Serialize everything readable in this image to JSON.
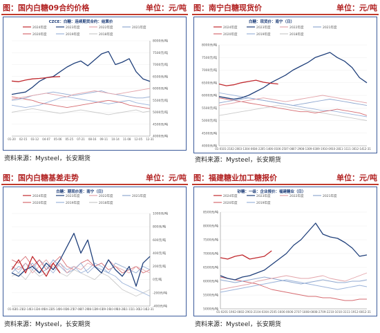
{
  "panels": [
    {
      "header": {
        "title": "图：国内白糖09合约价格",
        "unit": "单位：元/吨"
      },
      "source": "资料来源：Mysteel，长安期货",
      "chart": {
        "type": "line",
        "title": "CZCE：白糖：连续期货合约：结算价",
        "unit_label": "元/吨",
        "ylim": [
          4000,
          8000
        ],
        "y_ticks": [
          4000,
          4500,
          5000,
          5500,
          6000,
          6500,
          7000,
          7500,
          8000
        ],
        "y_tick_labels": [
          "4000元/吨",
          "4500元/吨",
          "5000元/吨",
          "5500元/吨",
          "6000元/吨",
          "6500元/吨",
          "7000元/吨",
          "7500元/吨",
          "8000元/吨"
        ],
        "x_tick_labels": [
          "01-20",
          "02-15",
          "03-12",
          "04-07",
          "05-06",
          "05-25",
          "07-21",
          "08-16",
          "09-11",
          "10-14",
          "11-08",
          "12-05",
          "12-31"
        ],
        "legend": [
          "2024年度",
          "2023年度",
          "2022年度",
          "2021年度",
          "2020年度",
          "2019年度",
          "2018年度"
        ],
        "colors": [
          "#c0282d",
          "#1f3f7a",
          "#e3a3a9",
          "#8fa8d0",
          "#d66a6f",
          "#9bb3da",
          "#c9c9c9"
        ],
        "series": [
          {
            "name": "2024年度",
            "values": [
              6310,
              6280,
              6350,
              6400,
              6420,
              6450,
              6480,
              6500
            ]
          },
          {
            "name": "2023年度",
            "values": [
              5750,
              5800,
              5850,
              6050,
              6300,
              6450,
              6500,
              6700,
              6900,
              7050,
              7150,
              6950,
              7200,
              7450,
              7550,
              7000,
              7100,
              7250,
              6700,
              6400,
              6300
            ]
          },
          {
            "name": "2022年度",
            "values": [
              5550,
              5600,
              5650,
              5700,
              5750,
              5800,
              5750,
              5700,
              5650,
              5750,
              5800,
              5850,
              5900,
              5850,
              5800,
              5750,
              5800,
              5850,
              5900,
              5950,
              6000
            ]
          },
          {
            "name": "2021年度",
            "values": [
              5500,
              5550,
              5600,
              5700,
              5750,
              5800,
              5850,
              5800,
              5750,
              5700,
              5750,
              5800,
              5850,
              5900,
              5800,
              5750,
              5700,
              5650,
              5600,
              5600,
              5650
            ]
          },
          {
            "name": "2020年度",
            "values": [
              5650,
              5600,
              5550,
              5500,
              5400,
              5350,
              5300,
              5250,
              5200,
              5250,
              5300,
              5350,
              5400,
              5450,
              5500,
              5450,
              5400,
              5300,
              5250,
              5200,
              5150
            ]
          },
          {
            "name": "2019年度",
            "values": [
              5300,
              5250,
              5200,
              5250,
              5300,
              5400,
              5500,
              5600,
              5650,
              5600,
              5550,
              5500,
              5450,
              5400,
              5350,
              5400,
              5450,
              5500,
              5400,
              5350,
              5300
            ]
          },
          {
            "name": "2018年度",
            "values": [
              5000,
              5050,
              5100,
              5150,
              5100,
              5050,
              5000,
              4950,
              5000,
              5050,
              5100,
              5050,
              5000,
              4950,
              4900,
              4950,
              5000,
              5050,
              5100,
              5000,
              5050
            ]
          }
        ]
      }
    },
    {
      "header": {
        "title": "图：南宁白糖现货价",
        "unit": "单位：元/吨"
      },
      "source": "资料来源：Mysteel，长安期货",
      "chart": {
        "type": "line",
        "title": "白糖：现货价：南宁（日）",
        "unit_label": "元/吨",
        "ylim": [
          4000,
          8000
        ],
        "y_ticks": [
          4000,
          4500,
          5000,
          5500,
          6000,
          6500,
          7000,
          7500,
          8000
        ],
        "y_tick_labels": [
          "4000元/吨",
          "4500元/吨",
          "5000元/吨",
          "5500元/吨",
          "6000元/吨",
          "6500元/吨",
          "7000元/吨",
          "7500元/吨",
          "8000元/吨"
        ],
        "x_tick_labels": [
          "01-01",
          "01-21",
          "02-20",
          "03-13",
          "04-06",
          "04-22",
          "05-14",
          "06-01",
          "06-25",
          "07-08",
          "07-29",
          "08-13",
          "09-03",
          "09-19",
          "10-09",
          "10-28",
          "11-11",
          "11-30",
          "12-14",
          "12-31"
        ],
        "legend": [
          "2024年度",
          "2023年度",
          "2022年度",
          "2021年度",
          "2020年度",
          "2019年度",
          "2018年度"
        ],
        "colors": [
          "#c0282d",
          "#1f3f7a",
          "#e3a3a9",
          "#8fa8d0",
          "#d66a6f",
          "#9bb3da",
          "#c9c9c9"
        ],
        "series": [
          {
            "name": "2024年度",
            "values": [
              6450,
              6380,
              6420,
              6500,
              6550,
              6600,
              6520,
              6480,
              6450
            ]
          },
          {
            "name": "2023年度",
            "values": [
              5950,
              5900,
              5850,
              5900,
              6000,
              6150,
              6300,
              6500,
              6650,
              6800,
              7000,
              7150,
              7300,
              7500,
              7600,
              7700,
              7500,
              7350,
              7100,
              6700,
              6500
            ]
          },
          {
            "name": "2022年度",
            "values": [
              5600,
              5650,
              5700,
              5750,
              5800,
              5850,
              5900,
              5850,
              5800,
              5750,
              5800,
              5850,
              5900,
              5950,
              6000,
              5950,
              5900,
              5850,
              5800,
              5750,
              5700
            ]
          },
          {
            "name": "2021年度",
            "values": [
              5700,
              5750,
              5800,
              5850,
              5900,
              5850,
              5800,
              5750,
              5700,
              5650,
              5600,
              5650,
              5700,
              5750,
              5800,
              5850,
              5800,
              5750,
              5700,
              5650,
              5600
            ]
          },
          {
            "name": "2020年度",
            "values": [
              5900,
              5850,
              5800,
              5750,
              5700,
              5650,
              5600,
              5550,
              5500,
              5450,
              5400,
              5350,
              5350,
              5300,
              5350,
              5400,
              5450,
              5400,
              5350,
              5300,
              5200
            ]
          },
          {
            "name": "2019年度",
            "values": [
              6100,
              6050,
              6000,
              5950,
              5900,
              5850,
              5800,
              5750,
              5700,
              5650,
              5600,
              5550,
              5500,
              5450,
              5400,
              5400,
              5350,
              5300,
              5250,
              5200,
              5150
            ]
          },
          {
            "name": "2018年度",
            "values": [
              5200,
              5250,
              5300,
              5350,
              5400,
              5450,
              5500,
              5550,
              5600,
              5550,
              5500,
              5450,
              5400,
              5350,
              5300,
              5250,
              5200,
              5150,
              5100,
              5050,
              5000
            ]
          }
        ]
      }
    },
    {
      "header": {
        "title": "图：国内白糖基差走势",
        "unit": "单位：元/吨"
      },
      "source": "资料来源：Mysteel，长安期货",
      "chart": {
        "type": "line",
        "title": "白糖：期现价差：南宁（日）",
        "unit_label": "元/吨",
        "ylim": [
          -400,
          1000
        ],
        "y_ticks": [
          -400,
          -200,
          0,
          200,
          400,
          600,
          800,
          1000
        ],
        "y_tick_labels": [
          "-400元/吨",
          "-200元/吨",
          "0元/吨",
          "200元/吨",
          "400元/吨",
          "600元/吨",
          "800元/吨",
          "1000元/吨"
        ],
        "x_tick_labels": [
          "01-02",
          "01-21",
          "02-14",
          "03-13",
          "04-06",
          "04-22",
          "05-14",
          "06-01",
          "06-25",
          "07-08",
          "07-29",
          "08-13",
          "09-03",
          "09-19",
          "10-09",
          "10-28",
          "11-11",
          "11-30",
          "12-14",
          "12-31"
        ],
        "legend": [
          "2024年度",
          "2023年度",
          "2022年度",
          "2021年度",
          "2020年度",
          "2019年度",
          "2018年度"
        ],
        "colors": [
          "#c0282d",
          "#1f3f7a",
          "#e3a3a9",
          "#8fa8d0",
          "#d66a6f",
          "#9bb3da",
          "#c9c9c9"
        ],
        "series": [
          {
            "name": "2024年度",
            "values": [
              150,
              300,
              100,
              350,
              200,
              50,
              250,
              100
            ]
          },
          {
            "name": "2023年度",
            "values": [
              100,
              50,
              150,
              200,
              100,
              250,
              150,
              300,
              500,
              700,
              400,
              600,
              200,
              100,
              300,
              150,
              50,
              200,
              -100,
              250,
              350
            ]
          },
          {
            "name": "2022年度",
            "values": [
              200,
              150,
              250,
              100,
              200,
              300,
              150,
              250,
              100,
              200,
              150,
              250,
              200,
              100,
              300,
              200,
              150,
              100,
              200,
              150,
              100
            ]
          },
          {
            "name": "2021年度",
            "values": [
              100,
              200,
              150,
              250,
              100,
              150,
              300,
              200,
              100,
              150,
              250,
              100,
              200,
              150,
              100,
              250,
              200,
              150,
              100,
              200,
              150
            ]
          },
          {
            "name": "2020年度",
            "values": [
              300,
              250,
              350,
              200,
              300,
              150,
              250,
              350,
              200,
              150,
              250,
              300,
              200,
              250,
              150,
              200,
              100,
              150,
              200,
              100,
              150
            ]
          },
          {
            "name": "2019年度",
            "values": [
              200,
              100,
              250,
              150,
              300,
              200,
              100,
              250,
              150,
              200,
              100,
              150,
              250,
              200,
              100,
              50,
              -50,
              -100,
              -150,
              -200,
              -250
            ]
          },
          {
            "name": "2018年度",
            "values": [
              50,
              100,
              0,
              150,
              50,
              100,
              200,
              100,
              50,
              150,
              100,
              50,
              0,
              100,
              50,
              -50,
              -150,
              -200,
              -250,
              -200,
              -150
            ]
          }
        ]
      }
    },
    {
      "header": {
        "title": "图：福建糖业加工糖报价",
        "unit": "单位：元/吨"
      },
      "source": "资料来源：Mysteel，长安期货",
      "chart": {
        "type": "line",
        "title": "砂糖：一级：企业报价：福建糖业（日）",
        "unit_label": "元/吨",
        "ylim": [
          5000,
          8500
        ],
        "y_ticks": [
          5000,
          5500,
          6000,
          6500,
          7000,
          7500,
          8000,
          8500
        ],
        "y_tick_labels": [
          "5000元/吨",
          "5500元/吨",
          "6000元/吨",
          "6500元/吨",
          "7000元/吨",
          "7500元/吨",
          "8000元/吨",
          "8500元/吨"
        ],
        "x_tick_labels": [
          "01-02",
          "01-19",
          "02-08",
          "02-29",
          "03-21",
          "04-03",
          "04-25",
          "05-16",
          "06-06",
          "06-27",
          "07-18",
          "08-08",
          "08-27",
          "09-22",
          "10-10",
          "10-31",
          "11-19",
          "12-08",
          "12-31"
        ],
        "legend": [
          "2024年度",
          "2023年度",
          "2022年度",
          "2021年度",
          "2020年度",
          "2019年度"
        ],
        "colors": [
          "#c0282d",
          "#1f3f7a",
          "#e3a3a9",
          "#8fa8d0",
          "#d66a6f",
          "#9bb3da"
        ],
        "series": [
          {
            "name": "2024年度",
            "values": [
              6850,
              6800,
              6900,
              6950,
              6800,
              6850,
              6900,
              7100
            ]
          },
          {
            "name": "2023年度",
            "values": [
              6200,
              6100,
              6050,
              6150,
              6200,
              6300,
              6400,
              6600,
              6800,
              7000,
              7300,
              7500,
              7800,
              8100,
              7700,
              7600,
              7550,
              7400,
              7200,
              6900,
              6950
            ]
          },
          {
            "name": "2022年度",
            "values": [
              5700,
              5750,
              5800,
              5850,
              5900,
              6000,
              6050,
              6100,
              6150,
              6200,
              6150,
              6100,
              6100,
              6150,
              6200,
              6100,
              6050,
              6000,
              6100,
              6200,
              6300
            ]
          },
          {
            "name": "2021年度",
            "values": [
              6050,
              6000,
              5950,
              6000,
              6050,
              6100,
              6150,
              6100,
              6050,
              6000,
              5950,
              5900,
              5950,
              6000,
              6050,
              6000,
              5950,
              5950,
              6000,
              6000,
              6050
            ]
          },
          {
            "name": "2020年度",
            "values": [
              6150,
              6100,
              6050,
              6000,
              5950,
              5900,
              5800,
              5700,
              5650,
              5600,
              5550,
              5500,
              5450,
              5450,
              5400,
              5400,
              5350,
              5300,
              5300,
              5350,
              5350
            ]
          },
          {
            "name": "2019年度",
            "values": [
              5600,
              5650,
              5700,
              5750,
              5800,
              5850,
              5900,
              5950,
              6000,
              6050,
              6000,
              5950,
              5900,
              5850,
              5800,
              5750,
              5700,
              5750,
              5800,
              5850,
              5800
            ]
          }
        ]
      }
    }
  ]
}
